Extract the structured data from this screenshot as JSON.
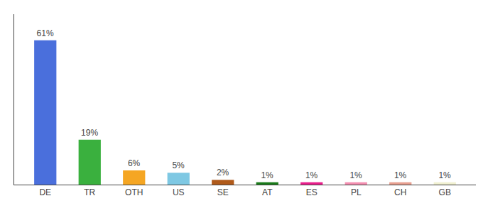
{
  "chart_data": {
    "type": "bar",
    "categories": [
      "DE",
      "TR",
      "OTH",
      "US",
      "SE",
      "AT",
      "ES",
      "PL",
      "CH",
      "GB"
    ],
    "values": [
      61,
      19,
      6,
      5,
      2,
      1,
      1,
      1,
      1,
      1
    ],
    "value_labels": [
      "61%",
      "19%",
      "6%",
      "5%",
      "2%",
      "1%",
      "1%",
      "1%",
      "1%",
      "1%"
    ],
    "colors": [
      "#4a6fdc",
      "#3ab03e",
      "#f5a623",
      "#7ec8e3",
      "#b05a1a",
      "#1a7a1a",
      "#e91e8c",
      "#f48fb1",
      "#e8a090",
      "#f0f0d0"
    ],
    "ylim": [
      0,
      72
    ],
    "grid": false,
    "data_labels": true,
    "tick_labels": "x"
  }
}
